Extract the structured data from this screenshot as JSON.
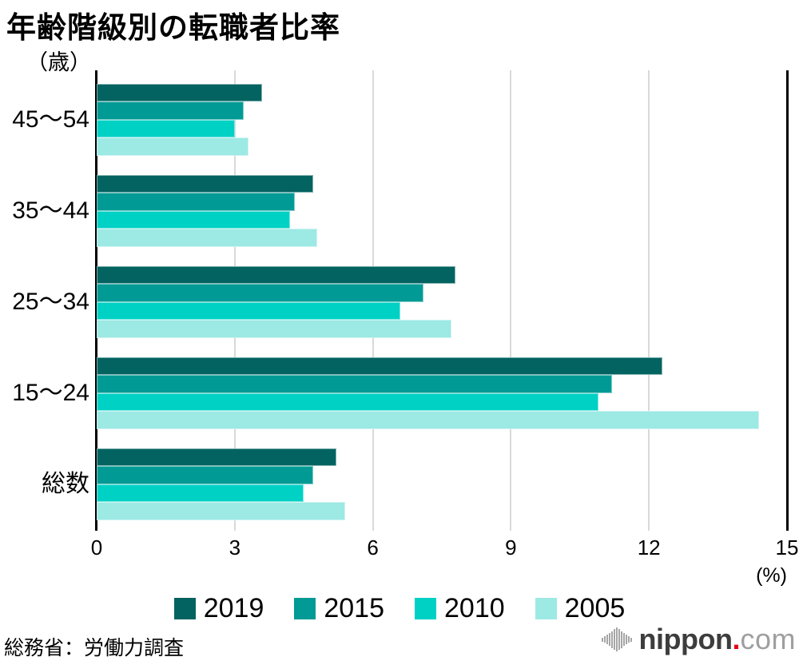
{
  "title": "年齢階級別の転職者比率",
  "y_axis_unit": "（歳）",
  "x_axis": {
    "ticks": [
      "0",
      "3",
      "6",
      "9",
      "12",
      "15"
    ],
    "unit_label": "(%)"
  },
  "source": "総務省：労働力調査",
  "logo": {
    "name": "nippon",
    "dot": ".",
    "tld": "com",
    "dot_color": "#e60012",
    "icon": "soundwave-bars"
  },
  "colors": {
    "grid": "#d9d9d9",
    "axis": "#000000",
    "background": "#ffffff"
  },
  "chart_data": {
    "type": "bar",
    "orientation": "horizontal",
    "title": "年齢階級別の転職者比率",
    "categories": [
      "45〜54",
      "35〜44",
      "25〜34",
      "15〜24",
      "総数"
    ],
    "series": [
      {
        "name": "2019",
        "color": "#036361",
        "values": [
          3.6,
          4.7,
          7.8,
          12.3,
          5.2
        ]
      },
      {
        "name": "2015",
        "color": "#029a94",
        "values": [
          3.2,
          4.3,
          7.1,
          11.2,
          4.7
        ]
      },
      {
        "name": "2010",
        "color": "#00d1c5",
        "values": [
          3.0,
          4.2,
          6.6,
          10.9,
          4.5
        ]
      },
      {
        "name": "2005",
        "color": "#9de9e4",
        "values": [
          3.3,
          4.8,
          7.7,
          14.4,
          5.4
        ]
      }
    ],
    "xlim": [
      0,
      15
    ],
    "gridlines": [
      3,
      6,
      9,
      12
    ],
    "grid": true,
    "legend_position": "bottom",
    "x_unit": "%",
    "y_unit": "歳"
  }
}
